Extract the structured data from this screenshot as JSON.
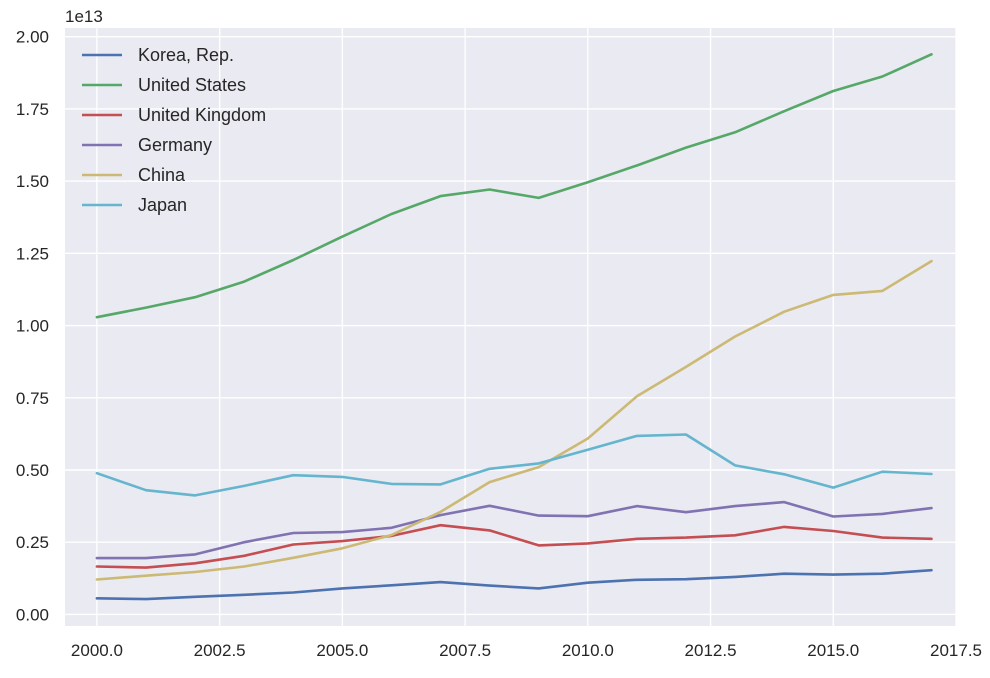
{
  "chart_data": {
    "type": "line",
    "title": "",
    "xlabel": "",
    "ylabel": "",
    "y_offset_label": "1e13",
    "y_scale": 10000000000000.0,
    "xlim": [
      1999.35,
      2017.5
    ],
    "ylim": [
      -0.04,
      2.03
    ],
    "x_ticks": [
      2000.0,
      2002.5,
      2005.0,
      2007.5,
      2010.0,
      2012.5,
      2015.0,
      2017.5
    ],
    "x_tick_labels": [
      "2000.0",
      "2002.5",
      "2005.0",
      "2007.5",
      "2010.0",
      "2012.5",
      "2015.0",
      "2017.5"
    ],
    "y_ticks": [
      0.0,
      0.25,
      0.5,
      0.75,
      1.0,
      1.25,
      1.5,
      1.75,
      2.0
    ],
    "y_tick_labels": [
      "0.00",
      "0.25",
      "0.50",
      "0.75",
      "1.00",
      "1.25",
      "1.50",
      "1.75",
      "2.00"
    ],
    "grid": true,
    "legend_position": "top-left",
    "x": [
      2000,
      2001,
      2002,
      2003,
      2004,
      2005,
      2006,
      2007,
      2008,
      2009,
      2010,
      2011,
      2012,
      2013,
      2014,
      2015,
      2016,
      2017
    ],
    "series": [
      {
        "name": "Korea, Rep.",
        "color": "#4c72b0",
        "values": [
          0.056,
          0.053,
          0.061,
          0.068,
          0.076,
          0.09,
          0.101,
          0.112,
          0.1,
          0.09,
          0.11,
          0.12,
          0.122,
          0.13,
          0.141,
          0.138,
          0.141,
          0.153
        ]
      },
      {
        "name": "United States",
        "color": "#55a868",
        "values": [
          1.029,
          1.062,
          1.098,
          1.152,
          1.227,
          1.308,
          1.386,
          1.448,
          1.471,
          1.442,
          1.496,
          1.554,
          1.616,
          1.669,
          1.742,
          1.812,
          1.862,
          1.939
        ]
      },
      {
        "name": "United Kingdom",
        "color": "#c44e52",
        "values": [
          0.166,
          0.162,
          0.177,
          0.203,
          0.242,
          0.254,
          0.272,
          0.309,
          0.291,
          0.239,
          0.246,
          0.262,
          0.266,
          0.274,
          0.303,
          0.289,
          0.266,
          0.262
        ]
      },
      {
        "name": "Germany",
        "color": "#8172b2",
        "values": [
          0.195,
          0.195,
          0.208,
          0.25,
          0.282,
          0.285,
          0.3,
          0.344,
          0.376,
          0.342,
          0.34,
          0.375,
          0.354,
          0.375,
          0.389,
          0.339,
          0.348,
          0.368
        ]
      },
      {
        "name": "China",
        "color": "#ccb974",
        "values": [
          0.121,
          0.134,
          0.147,
          0.166,
          0.196,
          0.229,
          0.275,
          0.355,
          0.458,
          0.51,
          0.609,
          0.755,
          0.857,
          0.962,
          1.048,
          1.106,
          1.12,
          1.223
        ]
      },
      {
        "name": "Japan",
        "color": "#64b5cd",
        "values": [
          0.489,
          0.43,
          0.412,
          0.445,
          0.482,
          0.476,
          0.452,
          0.45,
          0.504,
          0.523,
          0.57,
          0.618,
          0.623,
          0.516,
          0.485,
          0.439,
          0.494,
          0.486
        ]
      }
    ]
  }
}
